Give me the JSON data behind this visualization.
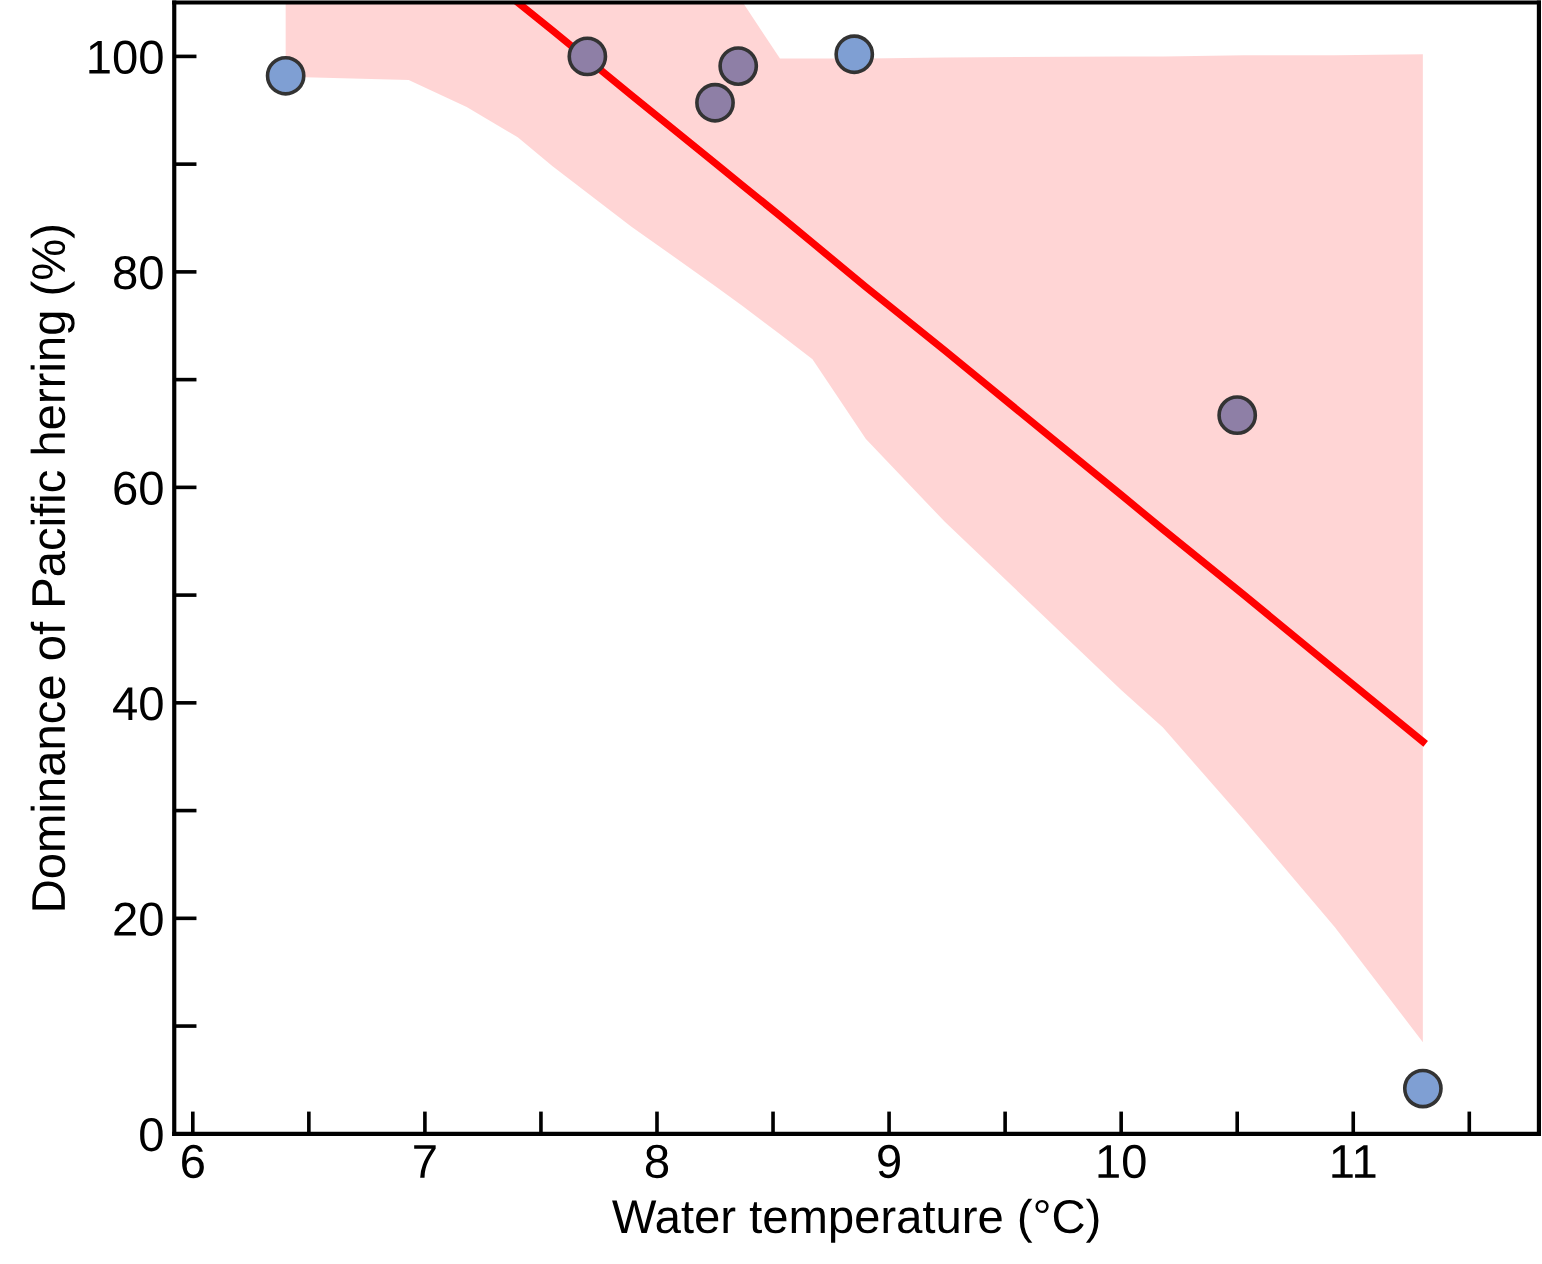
{
  "chart_data": {
    "type": "scatter",
    "xlabel": "Water temperature (°C)",
    "ylabel": "Dominance of Pacific herring (%)",
    "xlim": [
      5.92,
      11.8
    ],
    "ylim": [
      0,
      105
    ],
    "xticks": [
      6,
      {
        "value": 6.5,
        "label": null
      },
      7,
      {
        "value": 7.5,
        "label": null
      },
      8,
      {
        "value": 8.5,
        "label": null
      },
      9,
      {
        "value": 9.5,
        "label": null
      },
      10,
      {
        "value": 10.5,
        "label": null
      },
      11,
      {
        "value": 11.5,
        "label": null
      }
    ],
    "yticks": [
      0,
      {
        "value": 10,
        "label": null
      },
      20,
      {
        "value": 30,
        "label": null
      },
      40,
      {
        "value": 50,
        "label": null
      },
      60,
      {
        "value": 70,
        "label": null
      },
      80,
      {
        "value": 90,
        "label": null
      },
      100
    ],
    "grid": false,
    "legend": false,
    "series": [
      {
        "type": "line",
        "color": "#ff0000",
        "line_style": "solid",
        "x": [
          6.4,
          6.93,
          7.18,
          7.4,
          7.55,
          7.89,
          8.25,
          8.37,
          8.53,
          8.67,
          8.9,
          9.24,
          10.0,
          10.18,
          10.53,
          10.92,
          11.3
        ],
        "values": [
          null,
          null,
          null,
          105,
          102.4,
          96.4,
          90.1,
          88.0,
          85.2,
          82.7,
          78.6,
          72.7,
          59.3,
          56.1,
          50.0,
          43.1,
          36.4
        ],
        "upper": [
          105,
          105,
          105,
          105,
          105,
          105,
          105,
          105,
          99.8,
          99.8,
          99.8,
          99.9,
          100,
          100,
          100.1,
          100.1,
          100.2
        ],
        "lower": [
          98.1,
          97.8,
          95.3,
          92.5,
          89.8,
          84.2,
          78.7,
          76.8,
          74.2,
          71.9,
          64.5,
          56.8,
          41.2,
          37.7,
          29.1,
          19.2,
          8.5
        ]
      },
      {
        "marker": "circle",
        "x": [
          6.4,
          7.7,
          8.25,
          8.35,
          8.85,
          10.5,
          11.3
        ],
        "values": [
          98.2,
          100,
          95.7,
          99.1,
          100.2,
          66.7,
          4.2
        ],
        "colors": [
          "#7f9fd3",
          "#8e7fa6",
          "#8e7fa6",
          "#8e7fa6",
          "#7f9fd3",
          "#8e7fa6",
          "#7f9fd3"
        ]
      }
    ]
  }
}
